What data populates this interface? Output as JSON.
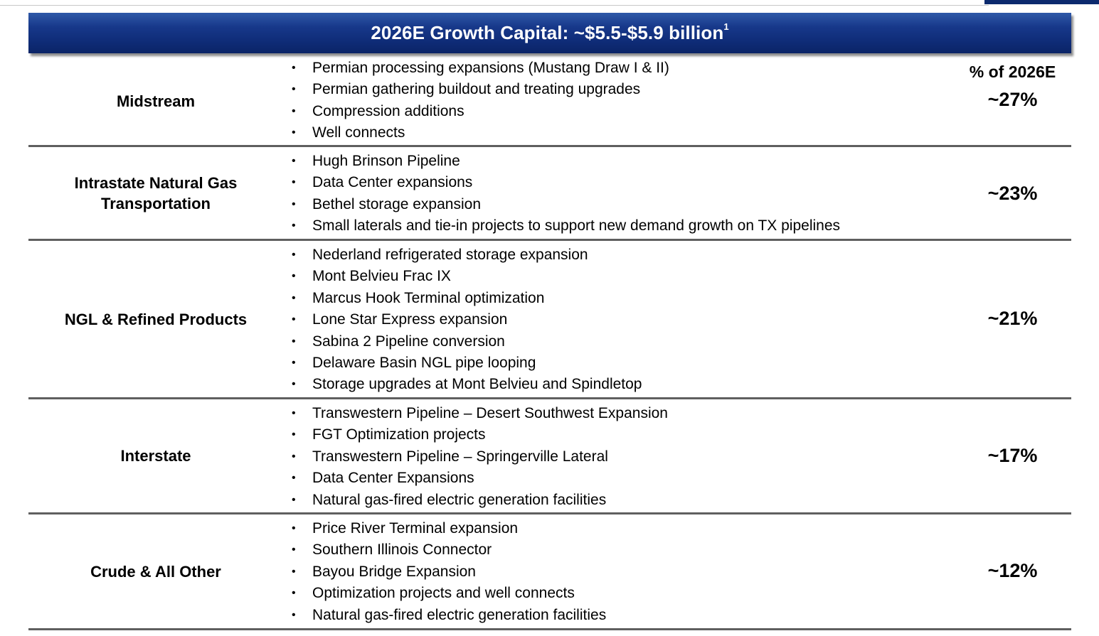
{
  "header": {
    "title": "2026E Growth Capital: ~$5.5-$5.9 billion",
    "footnote_marker": "1",
    "banner_color": "#17388a",
    "pct_column_header": "% of 2026E"
  },
  "sections": [
    {
      "label": "Midstream",
      "percent": "~27%",
      "items": [
        "Permian processing expansions (Mustang Draw I & II)",
        "Permian gathering buildout and treating upgrades",
        "Compression additions",
        "Well connects"
      ]
    },
    {
      "label": "Intrastate Natural Gas Transportation",
      "percent": "~23%",
      "items": [
        "Hugh Brinson Pipeline",
        "Data Center expansions",
        "Bethel storage expansion",
        "Small laterals and tie-in projects to support new demand growth on TX pipelines"
      ]
    },
    {
      "label": "NGL & Refined Products",
      "percent": "~21%",
      "items": [
        "Nederland refrigerated storage expansion",
        "Mont Belvieu Frac IX",
        "Marcus Hook Terminal optimization",
        "Lone Star Express expansion",
        "Sabina 2 Pipeline conversion",
        "Delaware Basin NGL pipe looping",
        "Storage upgrades at Mont Belvieu and Spindletop"
      ]
    },
    {
      "label": "Interstate",
      "percent": "~17%",
      "items": [
        "Transwestern Pipeline – Desert Southwest Expansion",
        "FGT Optimization projects",
        "Transwestern Pipeline – Springerville Lateral",
        "Data Center Expansions",
        "Natural gas-fired electric generation facilities"
      ]
    },
    {
      "label": "Crude & All Other",
      "percent": "~12%",
      "items": [
        "Price River Terminal expansion",
        "Southern Illinois Connector",
        "Bayou Bridge Expansion",
        "Optimization projects and well connects",
        "Natural gas-fired electric generation facilities"
      ]
    }
  ]
}
